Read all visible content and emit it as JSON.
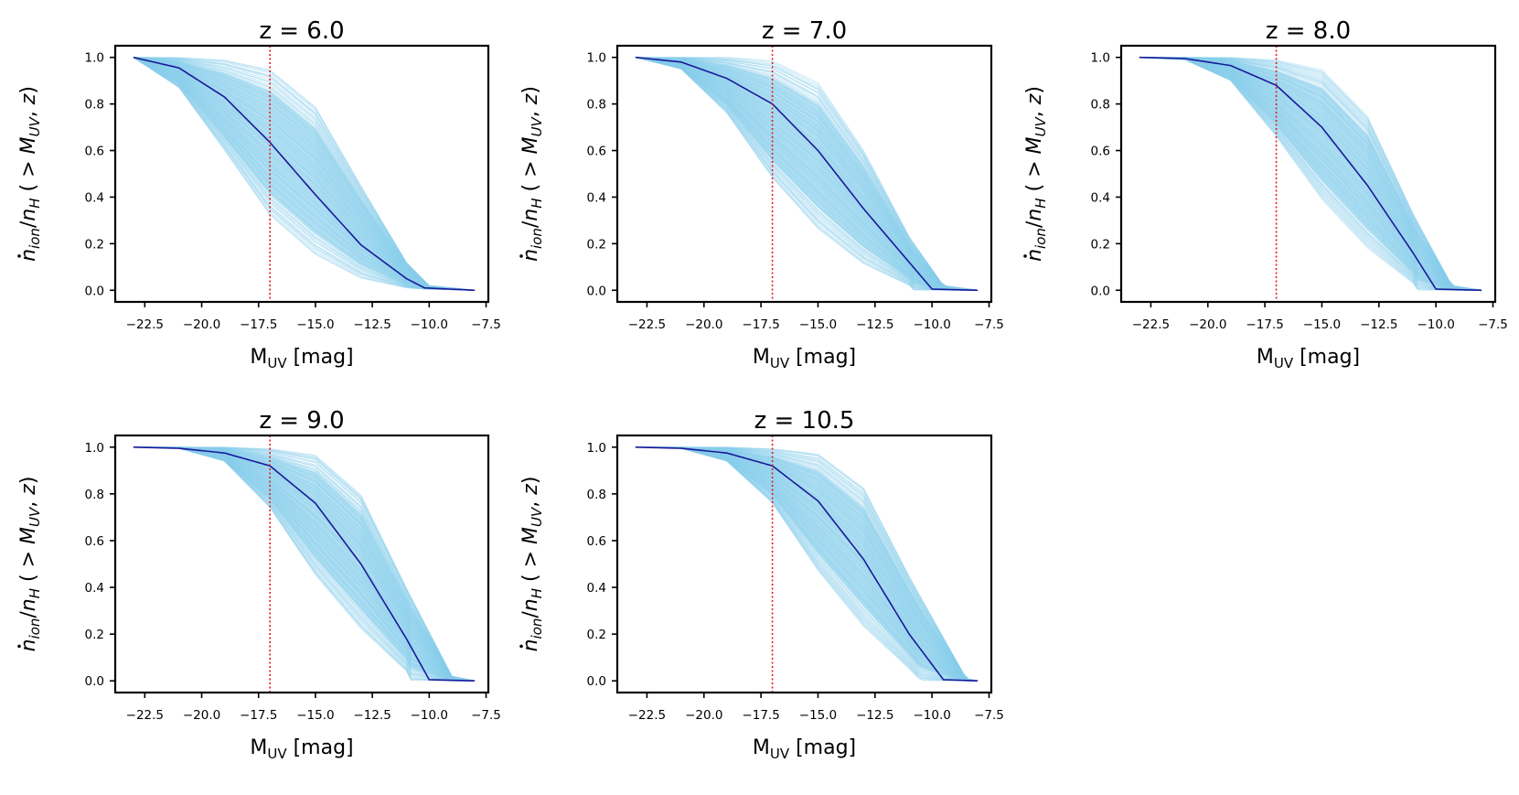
{
  "figure": {
    "background": "#ffffff"
  },
  "style": {
    "envelope_color": "#87ceeb",
    "median_color": "#1a1a9a",
    "marker_color": "#e41a1c"
  },
  "axes_labels": {
    "xlabel_main": "M",
    "xlabel_sub": "UV",
    "xlabel_unit": " [mag]",
    "ylabel_n": "n",
    "ylabel_ion": "ion",
    "ylabel_slash": "/",
    "ylabel_nh": "n",
    "ylabel_h": "H",
    "ylabel_open": " ( > ",
    "ylabel_m": "M",
    "ylabel_uv": "UV",
    "ylabel_comma": ", ",
    "ylabel_z": "z",
    "ylabel_close": ")"
  },
  "chart_data": [
    {
      "type": "line",
      "title": "z = 6.0",
      "xlim": [
        -23.8,
        -7.4
      ],
      "ylim": [
        -0.05,
        1.05
      ],
      "xticks": [
        -22.5,
        -20.0,
        -17.5,
        -15.0,
        -12.5,
        -10.0,
        -7.5
      ],
      "xtick_labels": [
        "−22.5",
        "−20.0",
        "−17.5",
        "−15.0",
        "−12.5",
        "−10.0",
        "−7.5"
      ],
      "yticks": [
        0.0,
        0.2,
        0.4,
        0.6,
        0.8,
        1.0
      ],
      "ytick_labels": [
        "0.0",
        "0.2",
        "0.4",
        "0.6",
        "0.8",
        "1.0"
      ],
      "vline_x": -17.0,
      "median": {
        "x": [
          -23.0,
          -21.0,
          -19.0,
          -17.0,
          -15.0,
          -13.0,
          -11.0,
          -10.2,
          -8.0
        ],
        "y": [
          1.0,
          0.955,
          0.83,
          0.635,
          0.41,
          0.195,
          0.05,
          0.01,
          0.0
        ]
      },
      "envelope_lower": {
        "x": [
          -23.0,
          -21.0,
          -19.0,
          -17.0,
          -15.0,
          -13.0,
          -11.0,
          -10.2,
          -8.0
        ],
        "y": [
          1.0,
          0.87,
          0.6,
          0.32,
          0.15,
          0.05,
          0.01,
          0.005,
          0.0
        ]
      },
      "envelope_upper": {
        "x": [
          -23.0,
          -21.0,
          -19.0,
          -17.0,
          -15.0,
          -13.0,
          -11.0,
          -10.0,
          -8.0
        ],
        "y": [
          1.0,
          1.0,
          0.99,
          0.95,
          0.79,
          0.45,
          0.12,
          0.02,
          0.0
        ]
      }
    },
    {
      "type": "line",
      "title": "z = 7.0",
      "xlim": [
        -23.8,
        -7.4
      ],
      "ylim": [
        -0.05,
        1.05
      ],
      "xticks": [
        -22.5,
        -20.0,
        -17.5,
        -15.0,
        -12.5,
        -10.0,
        -7.5
      ],
      "xtick_labels": [
        "−22.5",
        "−20.0",
        "−17.5",
        "−15.0",
        "−12.5",
        "−10.0",
        "−7.5"
      ],
      "yticks": [
        0.0,
        0.2,
        0.4,
        0.6,
        0.8,
        1.0
      ],
      "ytick_labels": [
        "0.0",
        "0.2",
        "0.4",
        "0.6",
        "0.8",
        "1.0"
      ],
      "vline_x": -17.0,
      "median": {
        "x": [
          -23.0,
          -21.0,
          -19.0,
          -17.0,
          -15.0,
          -13.0,
          -11.0,
          -10.0,
          -8.0
        ],
        "y": [
          1.0,
          0.98,
          0.91,
          0.8,
          0.6,
          0.35,
          0.12,
          0.005,
          0.0
        ]
      },
      "envelope_lower": {
        "x": [
          -23.0,
          -21.0,
          -19.0,
          -17.0,
          -15.0,
          -13.0,
          -11.0,
          -10.8,
          -8.0
        ],
        "y": [
          1.0,
          0.95,
          0.76,
          0.48,
          0.26,
          0.11,
          0.02,
          0.0,
          0.0
        ]
      },
      "envelope_upper": {
        "x": [
          -23.0,
          -21.0,
          -19.0,
          -17.0,
          -15.0,
          -13.0,
          -11.0,
          -9.5,
          -8.0
        ],
        "y": [
          1.0,
          1.0,
          1.0,
          0.985,
          0.89,
          0.6,
          0.23,
          0.02,
          0.0
        ]
      }
    },
    {
      "type": "line",
      "title": "z = 8.0",
      "xlim": [
        -23.8,
        -7.4
      ],
      "ylim": [
        -0.05,
        1.05
      ],
      "xticks": [
        -22.5,
        -20.0,
        -17.5,
        -15.0,
        -12.5,
        -10.0,
        -7.5
      ],
      "xtick_labels": [
        "−22.5",
        "−20.0",
        "−17.5",
        "−15.0",
        "−12.5",
        "−10.0",
        "−7.5"
      ],
      "yticks": [
        0.0,
        0.2,
        0.4,
        0.6,
        0.8,
        1.0
      ],
      "ytick_labels": [
        "0.0",
        "0.2",
        "0.4",
        "0.6",
        "0.8",
        "1.0"
      ],
      "vline_x": -17.0,
      "median": {
        "x": [
          -23.0,
          -21.0,
          -19.0,
          -17.0,
          -15.0,
          -13.0,
          -11.0,
          -10.0,
          -8.0
        ],
        "y": [
          1.0,
          0.995,
          0.965,
          0.88,
          0.7,
          0.45,
          0.16,
          0.005,
          0.0
        ]
      },
      "envelope_lower": {
        "x": [
          -23.0,
          -21.0,
          -19.0,
          -17.0,
          -15.0,
          -13.0,
          -11.0,
          -10.8,
          -8.0
        ],
        "y": [
          1.0,
          0.99,
          0.9,
          0.66,
          0.39,
          0.18,
          0.03,
          0.0,
          0.0
        ]
      },
      "envelope_upper": {
        "x": [
          -23.0,
          -21.0,
          -19.0,
          -17.0,
          -15.0,
          -13.0,
          -11.0,
          -9.3,
          -8.0
        ],
        "y": [
          1.0,
          1.0,
          1.0,
          0.99,
          0.95,
          0.75,
          0.33,
          0.02,
          0.0
        ]
      }
    },
    {
      "type": "line",
      "title": "z = 9.0",
      "xlim": [
        -23.8,
        -7.4
      ],
      "ylim": [
        -0.05,
        1.05
      ],
      "xticks": [
        -22.5,
        -20.0,
        -17.5,
        -15.0,
        -12.5,
        -10.0,
        -7.5
      ],
      "xtick_labels": [
        "−22.5",
        "−20.0",
        "−17.5",
        "−15.0",
        "−12.5",
        "−10.0",
        "−7.5"
      ],
      "yticks": [
        0.0,
        0.2,
        0.4,
        0.6,
        0.8,
        1.0
      ],
      "ytick_labels": [
        "0.0",
        "0.2",
        "0.4",
        "0.6",
        "0.8",
        "1.0"
      ],
      "vline_x": -17.0,
      "median": {
        "x": [
          -23.0,
          -21.0,
          -19.0,
          -17.0,
          -15.0,
          -13.0,
          -11.0,
          -10.0,
          -8.0
        ],
        "y": [
          1.0,
          0.995,
          0.975,
          0.92,
          0.76,
          0.5,
          0.18,
          0.005,
          0.0
        ]
      },
      "envelope_lower": {
        "x": [
          -23.0,
          -21.0,
          -19.0,
          -17.0,
          -15.0,
          -13.0,
          -11.0,
          -10.8,
          -8.0
        ],
        "y": [
          1.0,
          0.995,
          0.94,
          0.74,
          0.45,
          0.22,
          0.04,
          0.0,
          0.0
        ]
      },
      "envelope_upper": {
        "x": [
          -23.0,
          -21.0,
          -19.0,
          -17.0,
          -15.0,
          -13.0,
          -11.0,
          -9.0,
          -8.0
        ],
        "y": [
          1.0,
          1.0,
          1.0,
          0.995,
          0.97,
          0.8,
          0.4,
          0.02,
          0.0
        ]
      }
    },
    {
      "type": "line",
      "title": "z = 10.5",
      "xlim": [
        -23.8,
        -7.4
      ],
      "ylim": [
        -0.05,
        1.05
      ],
      "xticks": [
        -22.5,
        -20.0,
        -17.5,
        -15.0,
        -12.5,
        -10.0,
        -7.5
      ],
      "xtick_labels": [
        "−22.5",
        "−20.0",
        "−17.5",
        "−15.0",
        "−12.5",
        "−10.0",
        "−7.5"
      ],
      "yticks": [
        0.0,
        0.2,
        0.4,
        0.6,
        0.8,
        1.0
      ],
      "ytick_labels": [
        "0.0",
        "0.2",
        "0.4",
        "0.6",
        "0.8",
        "1.0"
      ],
      "vline_x": -17.0,
      "median": {
        "x": [
          -23.0,
          -21.0,
          -19.0,
          -17.0,
          -15.0,
          -13.0,
          -11.0,
          -9.5,
          -8.0
        ],
        "y": [
          1.0,
          0.995,
          0.975,
          0.92,
          0.77,
          0.52,
          0.2,
          0.005,
          0.0
        ]
      },
      "envelope_lower": {
        "x": [
          -23.0,
          -21.0,
          -19.0,
          -17.0,
          -15.0,
          -13.0,
          -11.0,
          -10.5,
          -8.0
        ],
        "y": [
          1.0,
          0.995,
          0.94,
          0.76,
          0.47,
          0.23,
          0.05,
          0.0,
          0.0
        ]
      },
      "envelope_upper": {
        "x": [
          -23.0,
          -21.0,
          -19.0,
          -17.0,
          -15.0,
          -13.0,
          -11.0,
          -8.5,
          -8.0
        ],
        "y": [
          1.0,
          1.0,
          1.0,
          0.995,
          0.975,
          0.83,
          0.45,
          0.01,
          0.0
        ]
      }
    }
  ]
}
